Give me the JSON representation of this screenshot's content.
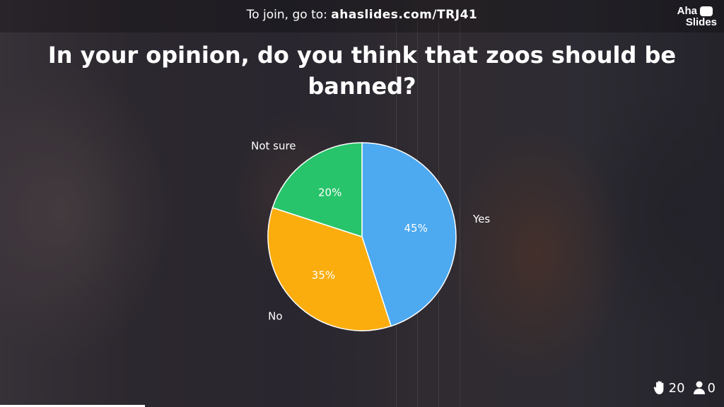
{
  "header": {
    "join_prefix": "To join, go to: ",
    "join_url": "ahaslides.com/TRJ41"
  },
  "logo": {
    "line1": "Aha",
    "line2": "Slides"
  },
  "question": "In your opinion, do you think that zoos should be banned?",
  "chart_data": {
    "type": "pie",
    "categories": [
      "Yes",
      "No",
      "Not sure"
    ],
    "values": [
      45,
      35,
      20
    ],
    "value_labels": [
      "45%",
      "35%",
      "20%"
    ],
    "colors": [
      "#4da9f0",
      "#fbad0e",
      "#27c46b"
    ],
    "start": "top",
    "direction": "clockwise",
    "legend": "none"
  },
  "footer": {
    "reactions_icon": "raised-hand-icon",
    "reactions_count": "20",
    "participants_icon": "person-icon",
    "participants_count": "0"
  },
  "progress": 0.2
}
